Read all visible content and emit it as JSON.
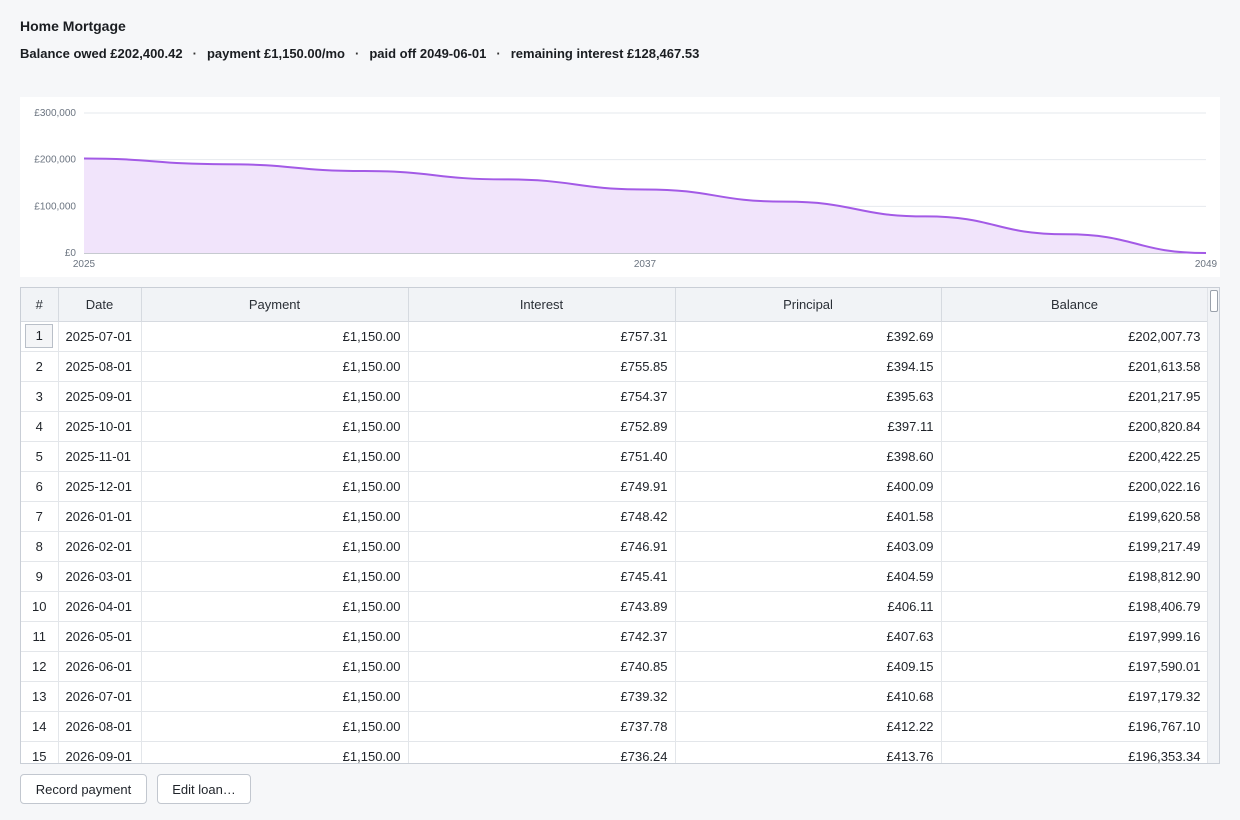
{
  "title": "Home Mortgage",
  "summary": {
    "balance": "Balance owed £202,400.42",
    "payment": "payment £1,150.00/mo",
    "paid_off": "paid off 2049-06-01",
    "remaining_interest": "remaining interest £128,467.53",
    "separator": "·"
  },
  "chart_data": {
    "type": "area",
    "x": [
      2025,
      2028,
      2031,
      2034,
      2037,
      2040,
      2043,
      2046,
      2049
    ],
    "values": [
      202400,
      190300,
      175600,
      157800,
      136200,
      110000,
      78400,
      40100,
      0
    ],
    "ylim": [
      0,
      300000
    ],
    "y_ticks": [
      "£0",
      "£100,000",
      "£200,000",
      "£300,000"
    ],
    "y_tick_values": [
      0,
      100000,
      200000,
      300000
    ],
    "x_ticks": [
      "2025",
      "2037",
      "2049"
    ],
    "x_tick_values": [
      2025,
      2037,
      2049
    ],
    "grid": true,
    "line_color": "#a35ae6",
    "fill_color": "#f1e4fb"
  },
  "table": {
    "columns": [
      "#",
      "Date",
      "Payment",
      "Interest",
      "Principal",
      "Balance"
    ],
    "rows": [
      [
        "1",
        "2025-07-01",
        "£1,150.00",
        "£757.31",
        "£392.69",
        "£202,007.73"
      ],
      [
        "2",
        "2025-08-01",
        "£1,150.00",
        "£755.85",
        "£394.15",
        "£201,613.58"
      ],
      [
        "3",
        "2025-09-01",
        "£1,150.00",
        "£754.37",
        "£395.63",
        "£201,217.95"
      ],
      [
        "4",
        "2025-10-01",
        "£1,150.00",
        "£752.89",
        "£397.11",
        "£200,820.84"
      ],
      [
        "5",
        "2025-11-01",
        "£1,150.00",
        "£751.40",
        "£398.60",
        "£200,422.25"
      ],
      [
        "6",
        "2025-12-01",
        "£1,150.00",
        "£749.91",
        "£400.09",
        "£200,022.16"
      ],
      [
        "7",
        "2026-01-01",
        "£1,150.00",
        "£748.42",
        "£401.58",
        "£199,620.58"
      ],
      [
        "8",
        "2026-02-01",
        "£1,150.00",
        "£746.91",
        "£403.09",
        "£199,217.49"
      ],
      [
        "9",
        "2026-03-01",
        "£1,150.00",
        "£745.41",
        "£404.59",
        "£198,812.90"
      ],
      [
        "10",
        "2026-04-01",
        "£1,150.00",
        "£743.89",
        "£406.11",
        "£198,406.79"
      ],
      [
        "11",
        "2026-05-01",
        "£1,150.00",
        "£742.37",
        "£407.63",
        "£197,999.16"
      ],
      [
        "12",
        "2026-06-01",
        "£1,150.00",
        "£740.85",
        "£409.15",
        "£197,590.01"
      ],
      [
        "13",
        "2026-07-01",
        "£1,150.00",
        "£739.32",
        "£410.68",
        "£197,179.32"
      ],
      [
        "14",
        "2026-08-01",
        "£1,150.00",
        "£737.78",
        "£412.22",
        "£196,767.10"
      ],
      [
        "15",
        "2026-09-01",
        "£1,150.00",
        "£736.24",
        "£413.76",
        "£196,353.34"
      ]
    ]
  },
  "buttons": {
    "record_payment": "Record payment",
    "edit_loan": "Edit loan…"
  }
}
